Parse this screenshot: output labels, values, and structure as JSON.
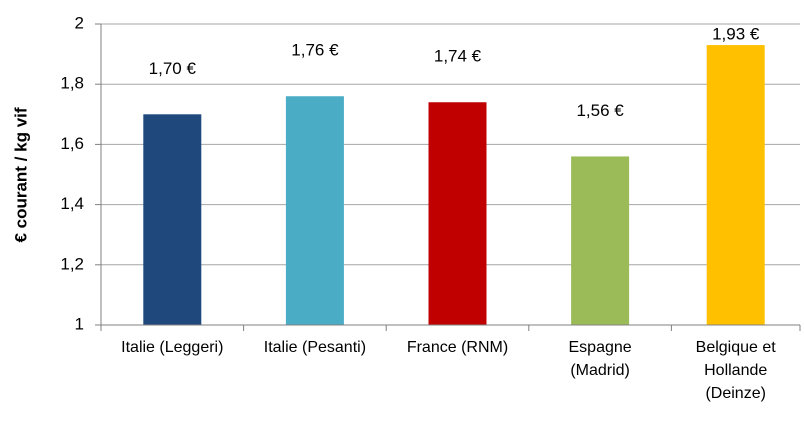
{
  "chart_data": {
    "type": "bar",
    "y_label": "€ courant / kg vif",
    "categories": [
      "Italie (Leggeri)",
      "Italie (Pesanti)",
      "France (RNM)",
      "Espagne\n(Madrid)",
      "Belgique et\nHollande\n(Deinze)"
    ],
    "values": [
      1.7,
      1.76,
      1.74,
      1.56,
      1.93
    ],
    "value_labels": [
      "1,70 €",
      "1,76 €",
      "1,74 €",
      "1,56 €",
      "1,93 €"
    ],
    "colors": [
      "#1f497d",
      "#4bacc6",
      "#c00000",
      "#9bbb59",
      "#ffc000"
    ],
    "ylim": [
      1,
      2
    ],
    "yticks": [
      1,
      {
        "value": 1.2,
        "label": "1,2"
      },
      {
        "value": 1.4,
        "label": "1,4"
      },
      {
        "value": 1.6,
        "label": "1,6"
      },
      {
        "value": 1.8,
        "label": "1,8"
      },
      2
    ],
    "grid": true
  }
}
